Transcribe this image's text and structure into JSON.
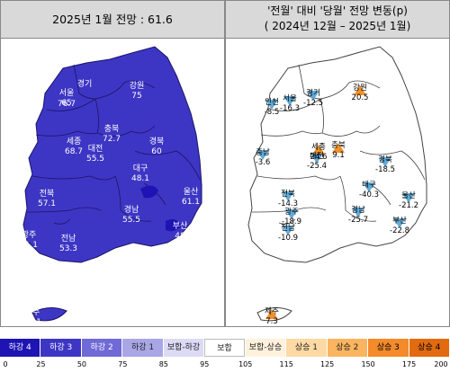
{
  "left_panel": {
    "title": "2025년 1월 전망 : 61.6",
    "map_color": "#3d36c4",
    "regions": [
      {
        "name": "인천",
        "value": "56.2"
      },
      {
        "name": "경기",
        "value": ""
      },
      {
        "name": "서울",
        "value": "65"
      },
      {
        "name": "",
        "value": "76.7"
      },
      {
        "name": "강원",
        "value": "75"
      },
      {
        "name": "충북",
        "value": "72.7"
      },
      {
        "name": "충남",
        "value": "71.4"
      },
      {
        "name": "세종",
        "value": "68.7"
      },
      {
        "name": "대전",
        "value": "55.5"
      },
      {
        "name": "경북",
        "value": "60"
      },
      {
        "name": "대구",
        "value": "48.1"
      },
      {
        "name": "전북",
        "value": "57.1"
      },
      {
        "name": "울산",
        "value": "61.1"
      },
      {
        "name": "경남",
        "value": "55.5"
      },
      {
        "name": "부산",
        "value": "48"
      },
      {
        "name": "광주",
        "value": "61.1"
      },
      {
        "name": "전남",
        "value": "53.3"
      },
      {
        "name": "제주",
        "value": "61.1"
      }
    ]
  },
  "right_panel": {
    "title_line1": "'전월' 대비 '당월' 전망 변동(p)",
    "title_line2": "( 2024년 12월 –  2025년 1월)",
    "up_color": "#f08a1e",
    "down_color": "#5aa6d6",
    "regions": [
      {
        "name": "경기",
        "value": "-12.5",
        "dir": "down"
      },
      {
        "name": "서울",
        "value": "-16.3",
        "dir": "down"
      },
      {
        "name": "인천",
        "value": "-8.5",
        "dir": "down"
      },
      {
        "name": "강원",
        "value": "20.5",
        "dir": "up"
      },
      {
        "name": "충남",
        "value": "-3.6",
        "dir": "down"
      },
      {
        "name": "세종",
        "value": "24.6",
        "dir": "up"
      },
      {
        "name": "대전",
        "value": "-25.4",
        "dir": "down"
      },
      {
        "name": "충북",
        "value": "9.1",
        "dir": "up"
      },
      {
        "name": "경북",
        "value": "-18.5",
        "dir": "down"
      },
      {
        "name": "전북",
        "value": "-14.3",
        "dir": "down"
      },
      {
        "name": "대구",
        "value": "-40.3",
        "dir": "down"
      },
      {
        "name": "울산",
        "value": "-21.2",
        "dir": "down"
      },
      {
        "name": "광주",
        "value": "-18.9",
        "dir": "down"
      },
      {
        "name": "경남",
        "value": "-25.7",
        "dir": "down"
      },
      {
        "name": "전남",
        "value": "-10.9",
        "dir": "down"
      },
      {
        "name": "부산",
        "value": "-22.8",
        "dir": "down"
      },
      {
        "name": "제주",
        "value": "7.3",
        "dir": "up"
      }
    ]
  },
  "legend": {
    "items": [
      {
        "label": "하강 4",
        "color": "#1e14b4"
      },
      {
        "label": "하강 3",
        "color": "#3d36c4"
      },
      {
        "label": "하강 2",
        "color": "#6f6ad6"
      },
      {
        "label": "하강 1",
        "color": "#a9a6e6"
      },
      {
        "label": "보합-하강",
        "color": "#dcdaf4"
      },
      {
        "label": "보합",
        "color": "#ffffff"
      },
      {
        "label": "보합-상승",
        "color": "#fff1dc"
      },
      {
        "label": "상승 1",
        "color": "#fdd9a3"
      },
      {
        "label": "상승 2",
        "color": "#fbb45f"
      },
      {
        "label": "상승 3",
        "color": "#f48a2a"
      },
      {
        "label": "상승 4",
        "color": "#e26a0f"
      }
    ],
    "ticks": [
      "0",
      "25",
      "50",
      "75",
      "85",
      "95",
      "105",
      "115",
      "125",
      "150",
      "175",
      "200"
    ]
  }
}
